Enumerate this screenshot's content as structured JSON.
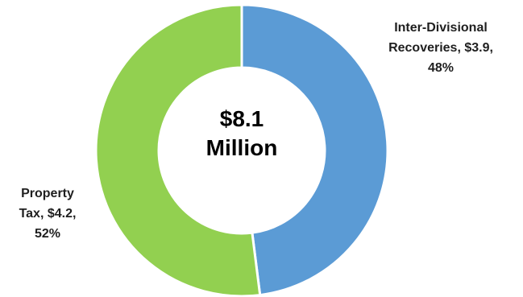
{
  "chart_data": {
    "type": "pie",
    "center_label": [
      "$8.1",
      "Million"
    ],
    "slices": [
      {
        "label_lines": [
          "Inter-Divisional",
          "Recoveries, $3.9,",
          "48%"
        ],
        "value": 3.9,
        "percent": 48,
        "color": "#5b9bd5"
      },
      {
        "label_lines": [
          "Property",
          "Tax, $4.2,",
          "52%"
        ],
        "value": 4.2,
        "percent": 52,
        "color": "#92d050"
      }
    ],
    "legend": "none"
  }
}
